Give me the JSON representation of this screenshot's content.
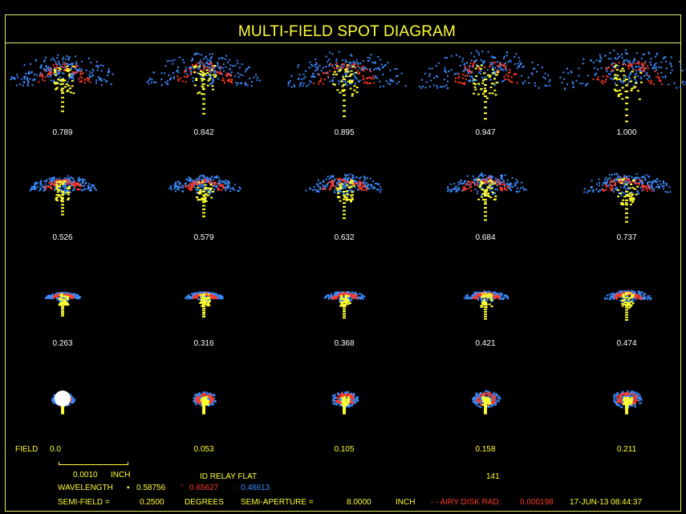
{
  "title": "MULTI-FIELD SPOT DIAGRAM",
  "colors": {
    "primary": "#ffff33",
    "secondary": "#ff3a2a",
    "tertiary": "#3a8cff",
    "frame": "#e8e870"
  },
  "field_labels": [
    [
      "0.789",
      "0.842",
      "0.895",
      "0.947",
      "1.000"
    ],
    [
      "0.526",
      "0.579",
      "0.632",
      "0.684",
      "0.737"
    ],
    [
      "0.263",
      "0.316",
      "0.368",
      "0.421",
      "0.474"
    ],
    [
      "0.0",
      "0.053",
      "0.105",
      "0.158",
      "0.211"
    ]
  ],
  "field_word": "FIELD",
  "scale": {
    "value": "0.0010",
    "unit": "INCH"
  },
  "system_name": "ID RELAY FLAT",
  "system_number": "141",
  "wavelength": {
    "label": "WAVELENGTH",
    "values": [
      "0.58756",
      "0.65627",
      "0.48613"
    ]
  },
  "semi_field": {
    "label": "SEMI-FIELD =",
    "value": "0.2500",
    "unit": "DEGREES"
  },
  "semi_aperture": {
    "label": "SEMI-APERTURE =",
    "value": "8.0000",
    "unit": "INCH"
  },
  "airy": {
    "label": "- - AIRY DISK RAD:",
    "value": "0.000198"
  },
  "timestamp": "17-JUN-13  08:44:37"
}
